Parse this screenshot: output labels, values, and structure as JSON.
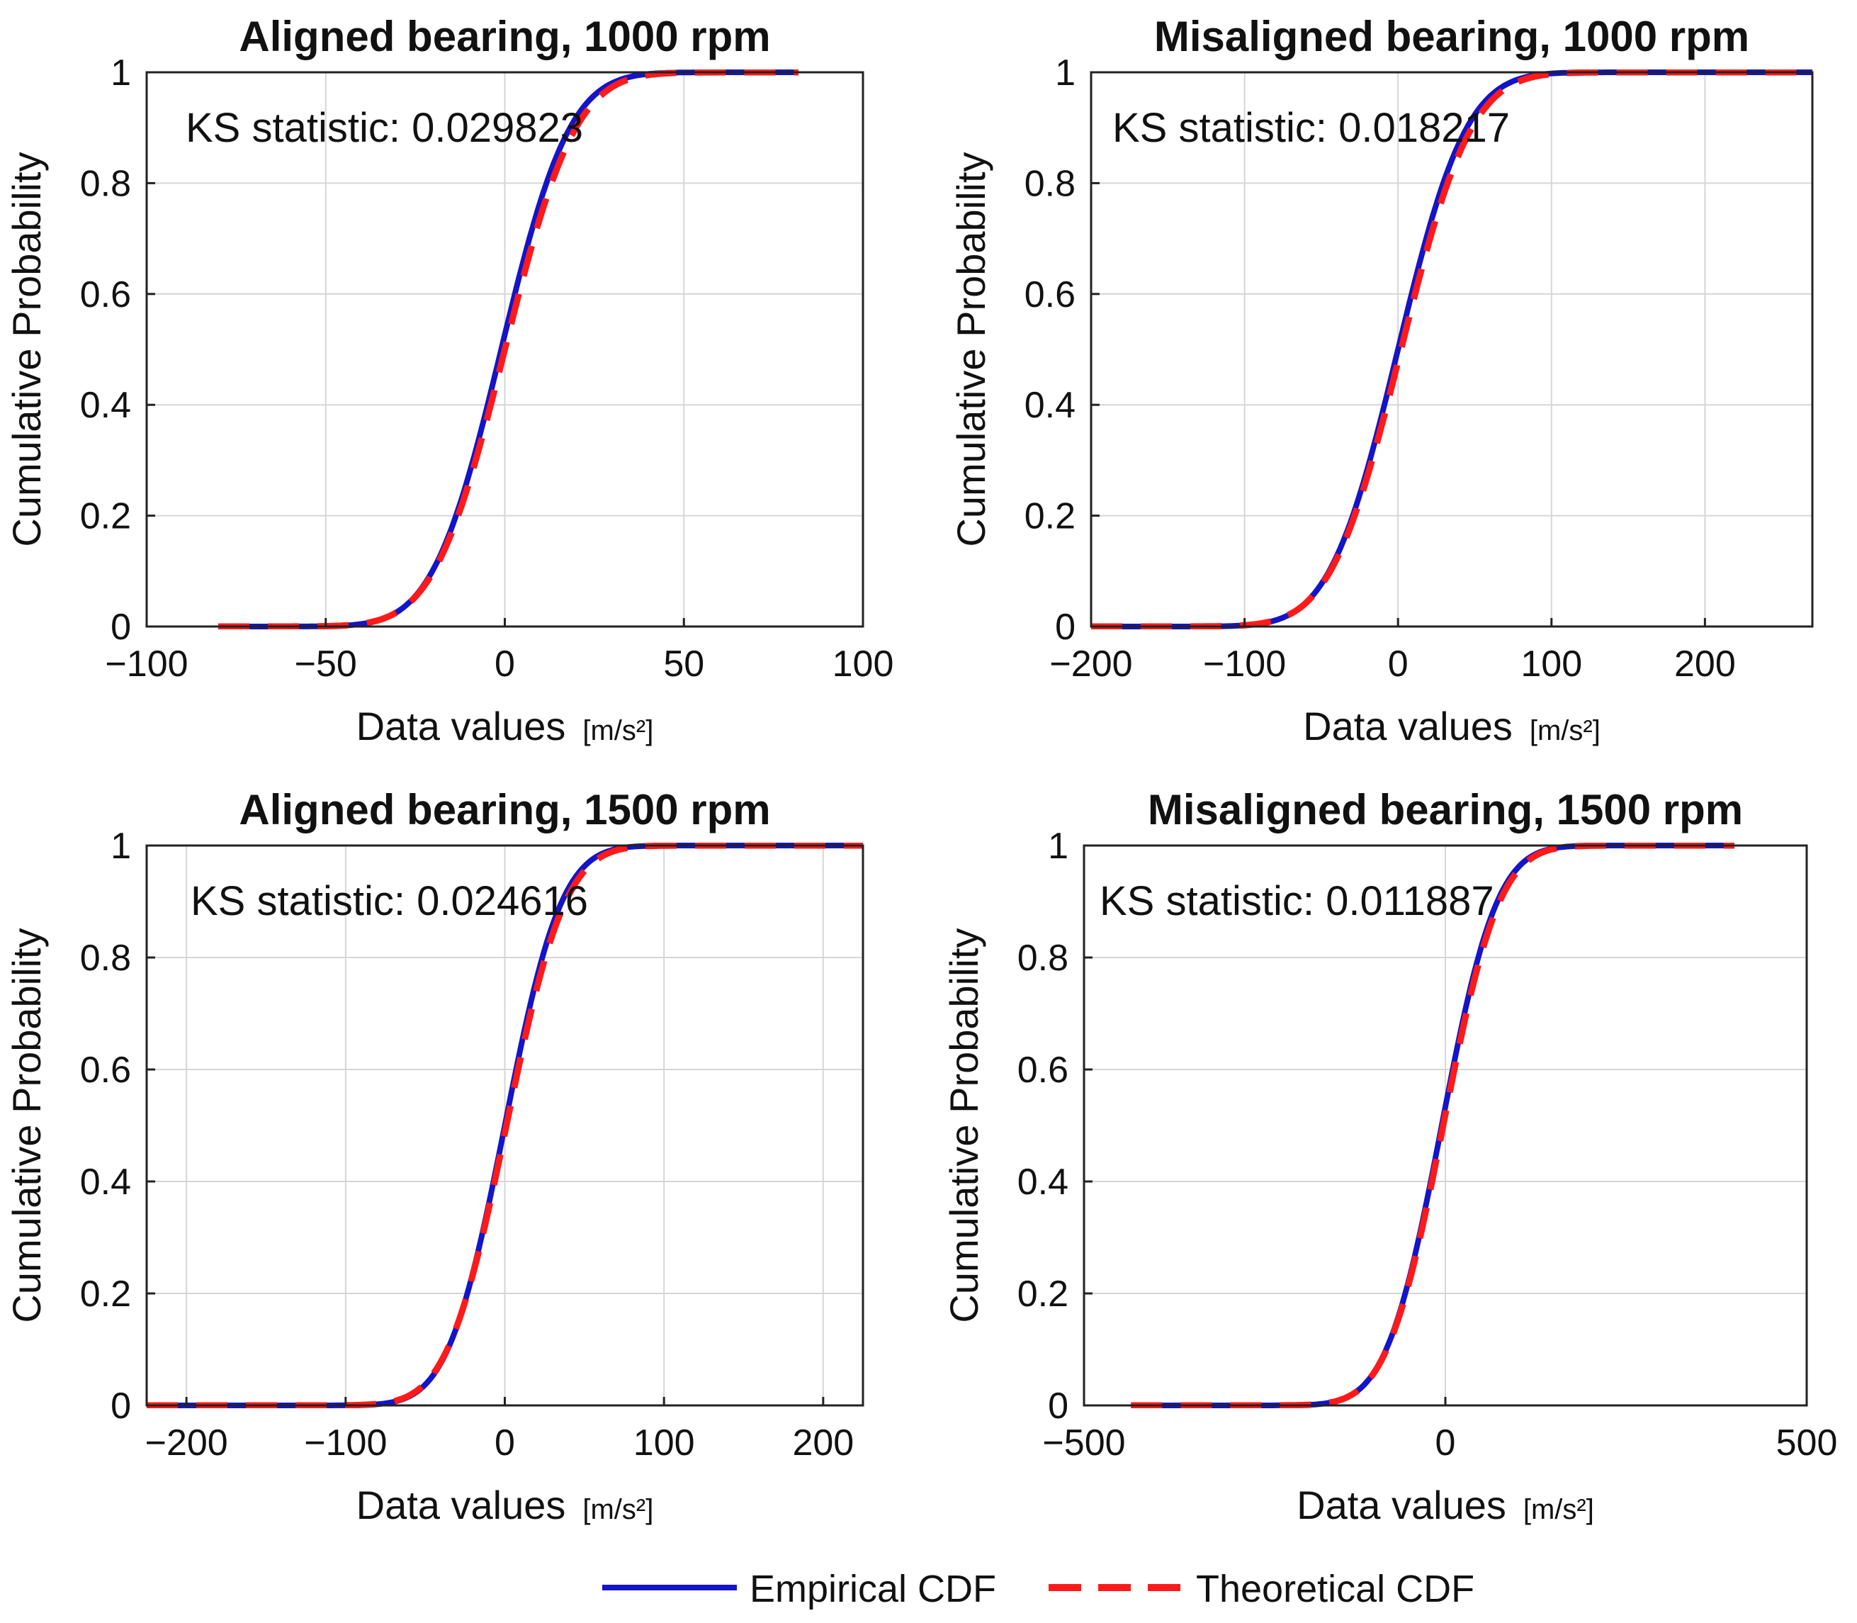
{
  "chart_data": [
    {
      "type": "line",
      "title": "Aligned bearing, 1000 rpm",
      "xlabel": "Data values",
      "xunit": "[m/s²]",
      "ylabel": "Cumulative Probability",
      "xlim": [
        -100,
        100
      ],
      "ylim": [
        0,
        1
      ],
      "xticks": [
        -100,
        -50,
        0,
        50,
        100
      ],
      "yticks": [
        0,
        0.2,
        0.4,
        0.6,
        0.8,
        1
      ],
      "grid": true,
      "annotation": "KS statistic: 0.029823",
      "series": [
        {
          "name": "Empirical CDF",
          "distribution": "normal",
          "mean": -1,
          "std": 15,
          "range": [
            -80,
            82
          ]
        },
        {
          "name": "Theoretical CDF",
          "distribution": "normal",
          "mean": 0,
          "std": 15.5,
          "range": [
            -80,
            82
          ]
        }
      ]
    },
    {
      "type": "line",
      "title": "Misaligned bearing, 1000 rpm",
      "xlabel": "Data values",
      "xunit": "[m/s²]",
      "ylabel": "Cumulative Probability",
      "xlim": [
        -200,
        270
      ],
      "ylim": [
        0,
        1
      ],
      "xticks": [
        -200,
        -100,
        0,
        100,
        200
      ],
      "yticks": [
        0,
        0.2,
        0.4,
        0.6,
        0.8,
        1
      ],
      "grid": true,
      "annotation": "KS statistic: 0.018217",
      "series": [
        {
          "name": "Empirical CDF",
          "distribution": "normal",
          "mean": 0,
          "std": 35,
          "range": [
            -200,
            270
          ]
        },
        {
          "name": "Theoretical CDF",
          "distribution": "normal",
          "mean": 2,
          "std": 36,
          "range": [
            -200,
            270
          ]
        }
      ]
    },
    {
      "type": "line",
      "title": "Aligned bearing, 1500 rpm",
      "xlabel": "Data values",
      "xunit": "[m/s²]",
      "ylabel": "Cumulative Probability",
      "xlim": [
        -225,
        225
      ],
      "ylim": [
        0,
        1
      ],
      "xticks": [
        -200,
        -100,
        0,
        100,
        200
      ],
      "yticks": [
        0,
        0.2,
        0.4,
        0.6,
        0.8,
        1
      ],
      "grid": true,
      "annotation": "KS statistic: 0.024616",
      "series": [
        {
          "name": "Empirical CDF",
          "distribution": "normal",
          "mean": 0,
          "std": 28,
          "range": [
            -225,
            225
          ]
        },
        {
          "name": "Theoretical CDF",
          "distribution": "normal",
          "mean": 1,
          "std": 29,
          "range": [
            -225,
            225
          ]
        }
      ]
    },
    {
      "type": "line",
      "title": "Misaligned bearing, 1500 rpm",
      "xlabel": "Data values",
      "xunit": "[m/s²]",
      "ylabel": "Cumulative Probability",
      "xlim": [
        -500,
        500
      ],
      "ylim": [
        0,
        1
      ],
      "xticks": [
        -500,
        0,
        500
      ],
      "yticks": [
        0,
        0.2,
        0.4,
        0.6,
        0.8,
        1
      ],
      "grid": true,
      "annotation": "KS statistic: 0.011887",
      "series": [
        {
          "name": "Empirical CDF",
          "distribution": "normal",
          "mean": -5,
          "std": 60,
          "range": [
            -435,
            400
          ]
        },
        {
          "name": "Theoretical CDF",
          "distribution": "normal",
          "mean": -3,
          "std": 61,
          "range": [
            -435,
            400
          ]
        }
      ]
    }
  ],
  "legend": {
    "placement": "bottom-center",
    "items": [
      {
        "label": "Empirical CDF",
        "color": "#1414c8",
        "style": "solid"
      },
      {
        "label": "Theoretical CDF",
        "color": "#ff1a1a",
        "style": "dashed"
      }
    ]
  },
  "colors": {
    "empirical": "#1414c8",
    "theoretical": "#ff1a1a",
    "grid": "#d6d6d6",
    "axis": "#222222"
  }
}
